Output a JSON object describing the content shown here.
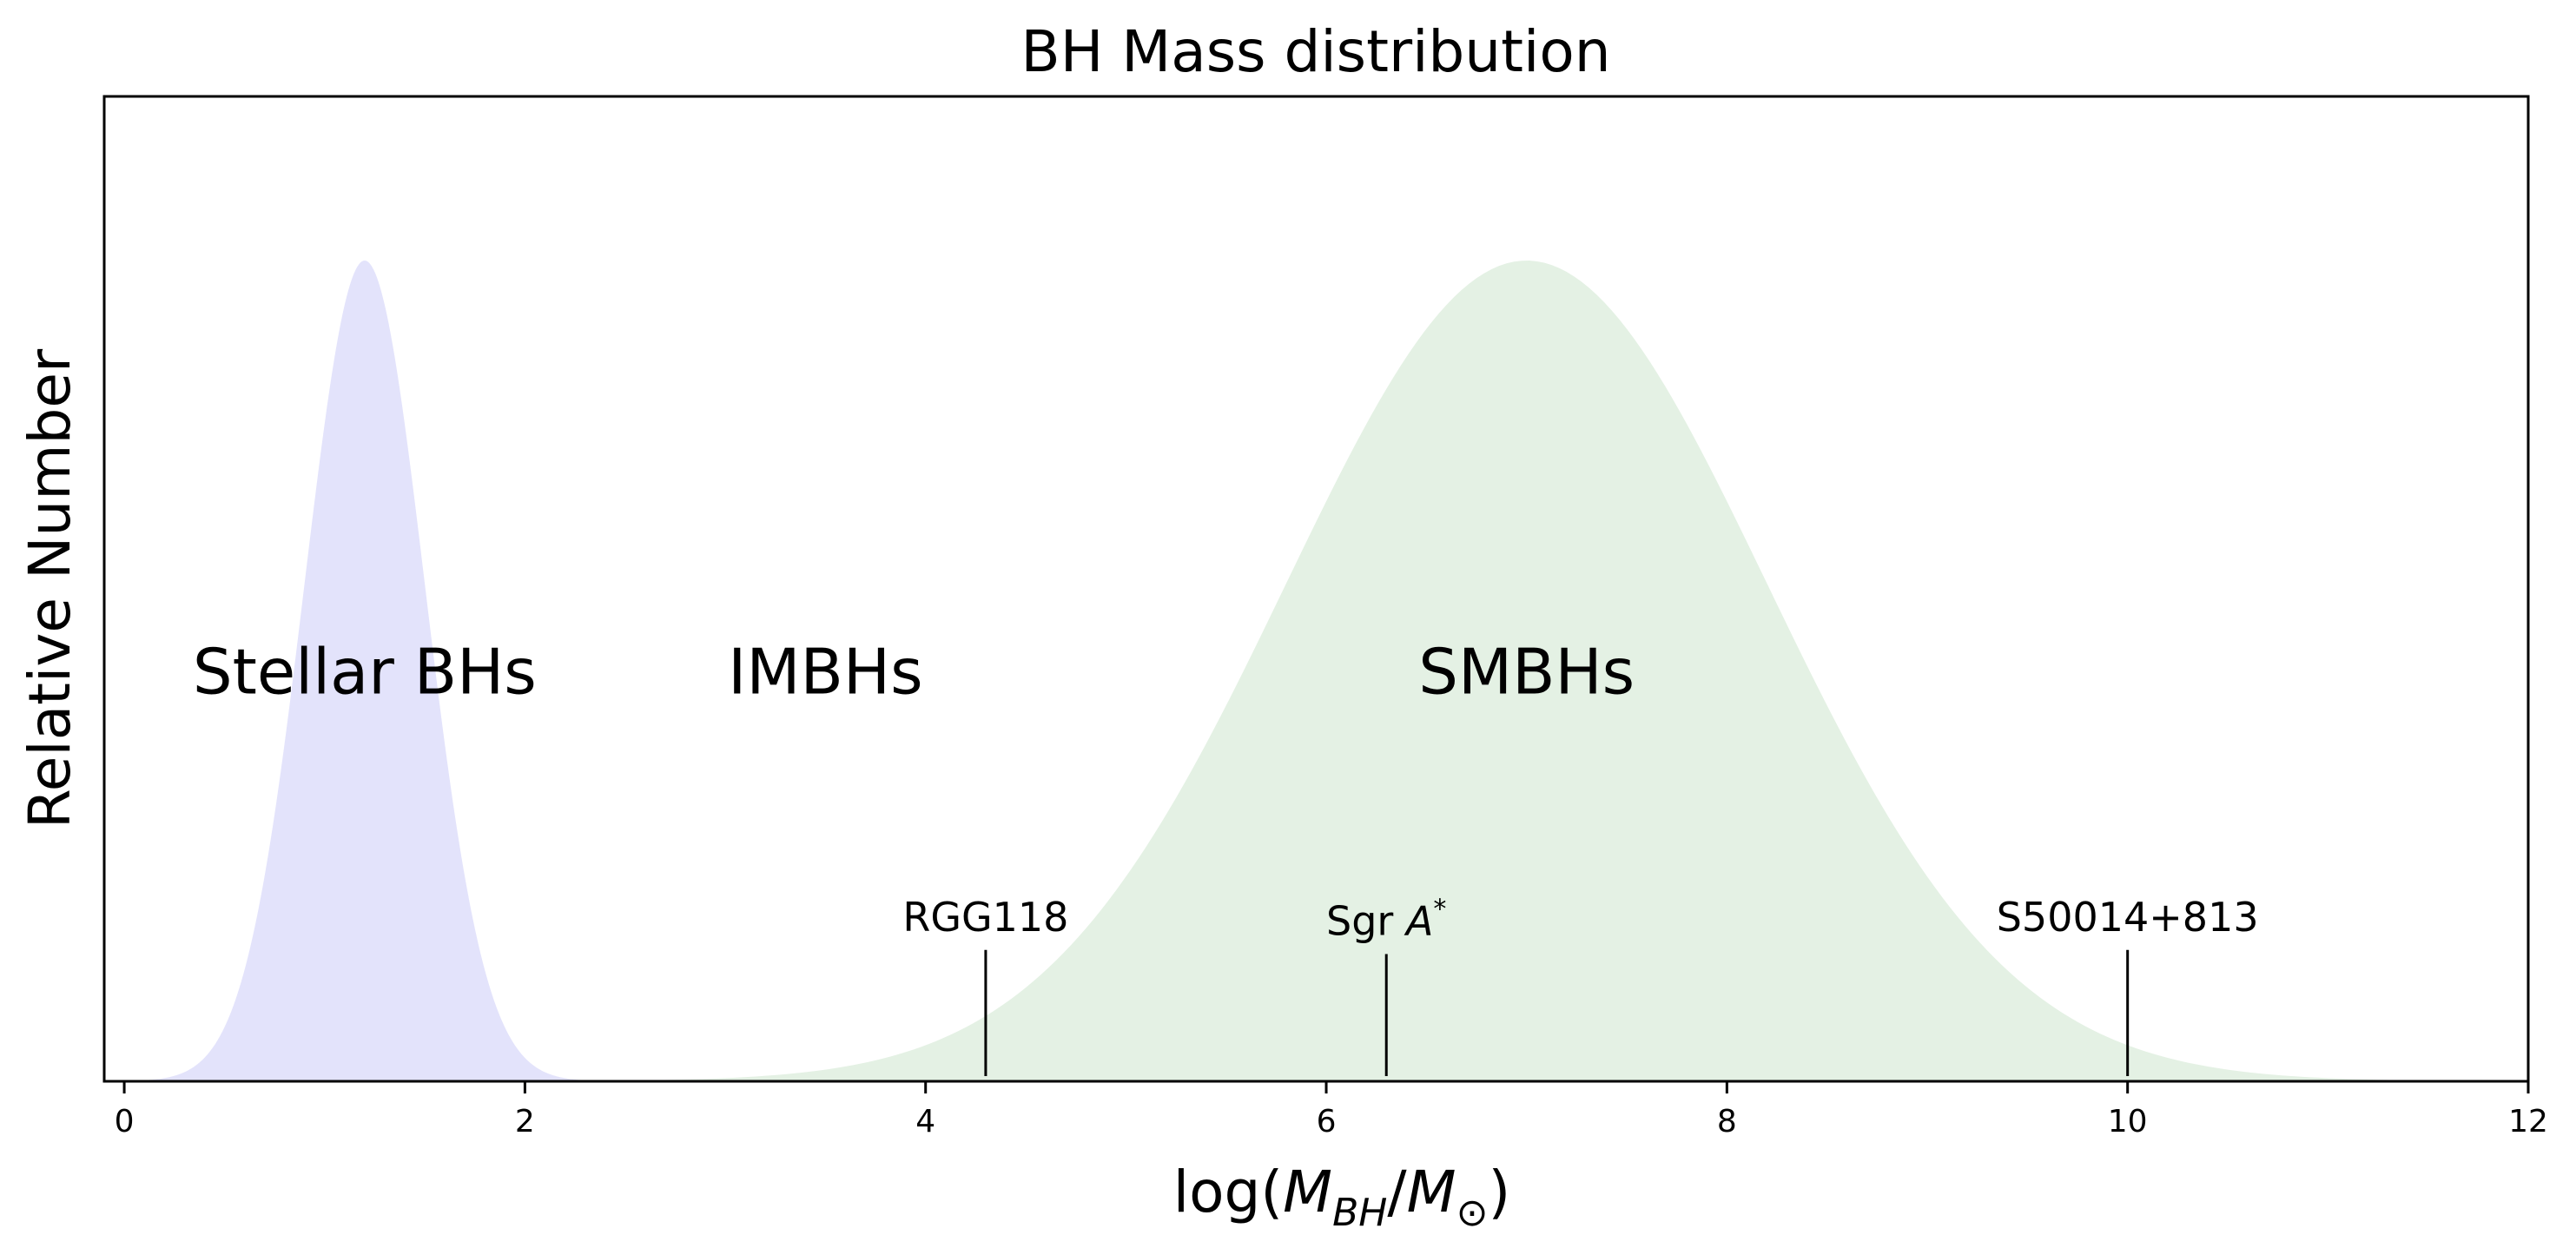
{
  "chart_data": {
    "type": "area",
    "title": "BH Mass distribution",
    "xlabel": "log(M_BH/M_⊙)",
    "ylabel": "Relative Number",
    "xlim": [
      -0.1,
      12
    ],
    "ylim": [
      0,
      1.2
    ],
    "x_ticks": [
      0,
      2,
      4,
      6,
      8,
      10,
      12
    ],
    "y_ticks_shown": false,
    "grid": false,
    "series": [
      {
        "distribution": "gaussian",
        "mean": 1.2,
        "sigma": 0.3,
        "peak": 1.0,
        "x_range": [
          0,
          2.4
        ],
        "color": "#e3e3fb"
      },
      {
        "distribution": "gaussian",
        "mean": 7.0,
        "sigma": 1.2,
        "peak": 1.0,
        "x_range": [
          0,
          12
        ],
        "color": "#e4f1e4"
      }
    ],
    "region_labels": [
      {
        "text": "Stellar BHs",
        "x": 1.2,
        "y": 0.5
      },
      {
        "text": "IMBHs",
        "x": 3.5,
        "y": 0.5
      },
      {
        "text": "SMBHs",
        "x": 7.0,
        "y": 0.5
      }
    ],
    "markers": [
      {
        "label": "RGG118",
        "x": 4.3,
        "y_top": 0.16
      },
      {
        "label_prefix": "Sgr ",
        "label_symbol": "A",
        "label_superscript": "*",
        "x": 6.3,
        "y_top": 0.155
      },
      {
        "label": "S50014+813",
        "x": 10.0,
        "y_top": 0.16
      }
    ]
  }
}
